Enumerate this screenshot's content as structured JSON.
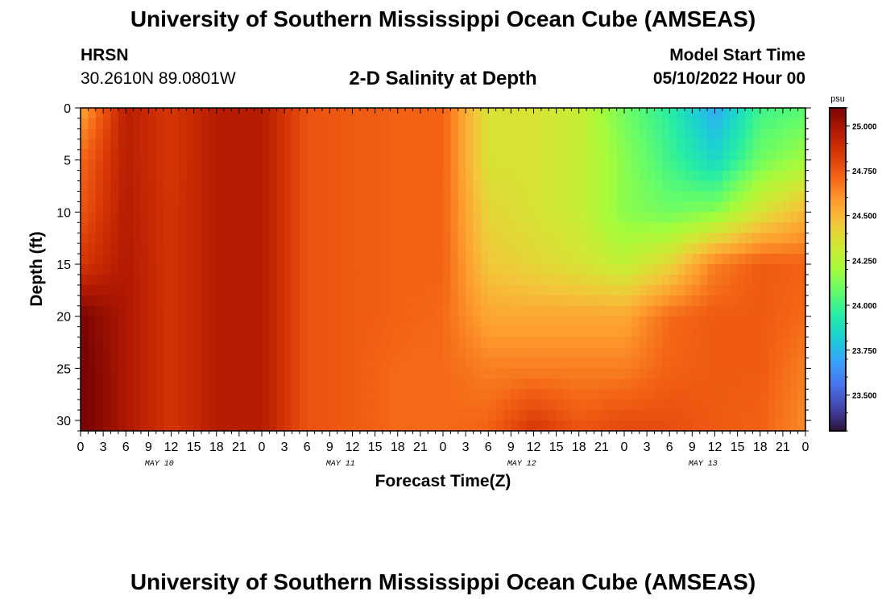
{
  "header": {
    "title": "University of Southern Mississippi Ocean Cube (AMSEAS)",
    "station": "HRSN",
    "coordinates": "30.2610N  89.0801W",
    "subtitle": "2-D Salinity at Depth",
    "start_label": "Model Start Time",
    "start_value": "05/10/2022 Hour 00"
  },
  "footer": {
    "title": "University of Southern Mississippi Ocean Cube (AMSEAS)"
  },
  "chart_data": {
    "type": "heatmap",
    "title": "2-D Salinity at Depth",
    "xlabel": "Forecast Time(Z)",
    "ylabel": "Depth (ft)",
    "units": "psu",
    "x_tick_labels": [
      "0",
      "3",
      "6",
      "9",
      "12",
      "15",
      "18",
      "21",
      "0",
      "3",
      "6",
      "9",
      "12",
      "15",
      "18",
      "21",
      "0",
      "3",
      "6",
      "9",
      "12",
      "15",
      "18",
      "21",
      "0",
      "3",
      "6",
      "9",
      "12",
      "15",
      "18",
      "21",
      "0"
    ],
    "date_labels": [
      {
        "label": "MAY 10",
        "hour": 10
      },
      {
        "label": "MAY 11",
        "hour": 34
      },
      {
        "label": "MAY 12",
        "hour": 58
      },
      {
        "label": "MAY 13",
        "hour": 82
      }
    ],
    "xlim_hours": [
      0,
      96
    ],
    "ylim_ft": [
      0,
      31
    ],
    "y_ticks": [
      0,
      5,
      10,
      15,
      20,
      25,
      30
    ],
    "colorbar": {
      "range": [
        23.3,
        25.1
      ],
      "ticks": [
        "25.000",
        "24.750",
        "24.500",
        "24.250",
        "24.000",
        "23.750",
        "23.500"
      ],
      "tick_values": [
        25.0,
        24.75,
        24.5,
        24.25,
        24.0,
        23.75,
        23.5
      ],
      "colors": [
        "#30123b",
        "#4145ab",
        "#4675ed",
        "#39a2fc",
        "#1bcfd4",
        "#24eca6",
        "#61fc6c",
        "#a4fc3b",
        "#d1e834",
        "#f3c63a",
        "#fe9b2d",
        "#f36315",
        "#d93806",
        "#b11901",
        "#7a0403"
      ]
    },
    "hours": [
      0,
      6,
      12,
      18,
      24,
      30,
      36,
      42,
      48,
      54,
      60,
      66,
      72,
      78,
      84,
      90,
      96
    ],
    "depths_ft": [
      0,
      5,
      10,
      15,
      20,
      25,
      31
    ],
    "salinity_psu": [
      [
        24.55,
        24.95,
        24.85,
        24.96,
        24.96,
        24.76,
        24.74,
        24.72,
        24.72,
        24.35,
        24.35,
        24.3,
        24.1,
        23.95,
        23.7,
        24.0,
        24.05
      ],
      [
        24.7,
        24.95,
        24.85,
        24.96,
        24.96,
        24.76,
        24.74,
        24.72,
        24.72,
        24.35,
        24.35,
        24.3,
        24.15,
        24.0,
        23.85,
        24.1,
        24.2
      ],
      [
        24.75,
        24.96,
        24.86,
        24.96,
        24.96,
        24.76,
        24.74,
        24.72,
        24.72,
        24.4,
        24.35,
        24.3,
        24.15,
        24.1,
        24.15,
        24.35,
        24.5
      ],
      [
        24.85,
        24.97,
        24.86,
        24.96,
        24.96,
        24.76,
        24.74,
        24.72,
        24.72,
        24.45,
        24.4,
        24.35,
        24.28,
        24.4,
        24.65,
        24.74,
        24.72
      ],
      [
        25.1,
        24.98,
        24.86,
        24.96,
        24.96,
        24.76,
        24.74,
        24.72,
        24.7,
        24.55,
        24.55,
        24.55,
        24.55,
        24.7,
        24.74,
        24.74,
        24.7
      ],
      [
        25.12,
        24.98,
        24.86,
        24.96,
        24.96,
        24.76,
        24.74,
        24.7,
        24.7,
        24.65,
        24.65,
        24.65,
        24.65,
        24.72,
        24.74,
        24.74,
        24.65
      ],
      [
        25.12,
        24.98,
        24.86,
        24.96,
        24.96,
        24.76,
        24.74,
        24.7,
        24.7,
        24.72,
        24.86,
        24.76,
        24.8,
        24.78,
        24.74,
        24.72,
        24.62
      ]
    ]
  }
}
